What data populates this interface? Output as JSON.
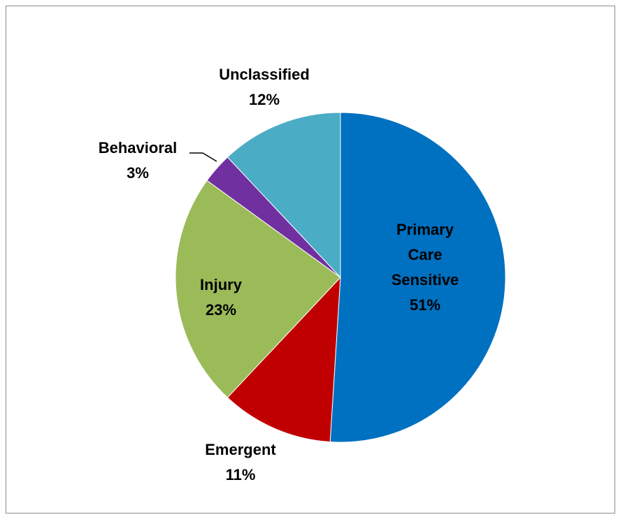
{
  "chart_data": {
    "type": "pie",
    "title": "",
    "start_angle_deg": 0,
    "direction": "clockwise",
    "slices": [
      {
        "label": "Primary Care Sensitive",
        "value": 51,
        "display": "51%",
        "color": "#0070C0"
      },
      {
        "label": "Emergent",
        "value": 11,
        "display": "11%",
        "color": "#C00000"
      },
      {
        "label": "Injury",
        "value": 23,
        "display": "23%",
        "color": "#9BBB59"
      },
      {
        "label": "Behavioral",
        "value": 3,
        "display": "3%",
        "color": "#7030A0"
      },
      {
        "label": "Unclassified",
        "value": 12,
        "display": "12%",
        "color": "#4BACC6"
      }
    ]
  }
}
